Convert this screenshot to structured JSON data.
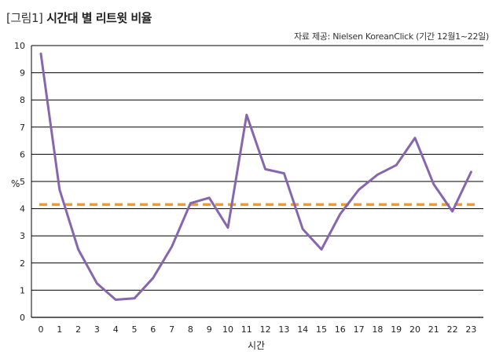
{
  "header": {
    "title_prefix": "[그림1]",
    "title_main": "시간대 별 리트윗 비율",
    "source": "자료 제공: Nielsen KoreanClick (기간 12월1~22일)"
  },
  "chart_data": {
    "type": "line",
    "x": [
      0,
      1,
      2,
      3,
      4,
      5,
      6,
      7,
      8,
      9,
      10,
      11,
      12,
      13,
      14,
      15,
      16,
      17,
      18,
      19,
      20,
      21,
      22,
      23
    ],
    "series": [
      {
        "values": [
          9.7,
          4.7,
          2.5,
          1.25,
          0.65,
          0.7,
          1.45,
          2.6,
          4.2,
          4.4,
          3.3,
          7.45,
          5.45,
          5.3,
          3.25,
          2.5,
          3.8,
          4.7,
          5.25,
          5.6,
          6.6,
          4.9,
          3.9,
          5.35
        ],
        "color": "#8766ad"
      }
    ],
    "average_line": {
      "value": 4.15,
      "color": "#f59a23",
      "style": "dashed"
    },
    "xlabel": "시간",
    "ylabel": "%",
    "ylim": [
      0,
      10
    ],
    "yticks": [
      0,
      1,
      2,
      3,
      4,
      5,
      6,
      7,
      8,
      9,
      10
    ],
    "grid": "horizontal"
  }
}
